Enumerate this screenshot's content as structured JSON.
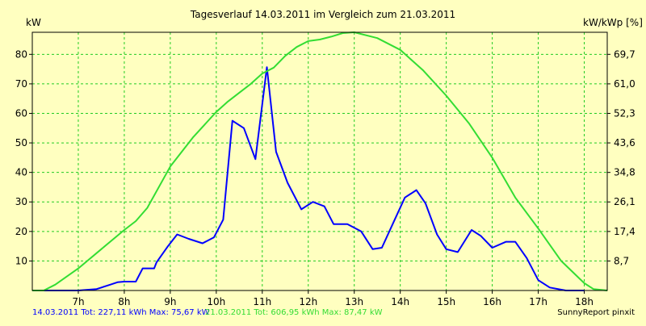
{
  "chart_data": {
    "type": "line",
    "title": "Tagesverlauf 14.03.2011 im Vergleich zum 21.03.2011",
    "ylabel_left": "kW",
    "ylabel_right": "kW/kWp [%]",
    "x_ticks": [
      "7h",
      "8h",
      "9h",
      "10h",
      "11h",
      "12h",
      "13h",
      "14h",
      "15h",
      "16h",
      "17h",
      "18h"
    ],
    "x_range": [
      6.0,
      18.5
    ],
    "y_ticks_left": [
      "10",
      "20",
      "30",
      "40",
      "50",
      "60",
      "70",
      "80"
    ],
    "y_ticks_right": [
      "8,7",
      "17,4",
      "26,1",
      "34,8",
      "43,6",
      "52,3",
      "61,0",
      "69,7"
    ],
    "ylim": [
      0,
      87.47
    ],
    "grid": true,
    "series": [
      {
        "name": "14.03.2011",
        "color": "#0000ff",
        "x": [
          6.0,
          6.4,
          7.0,
          7.4,
          7.7,
          7.85,
          8.0,
          8.25,
          8.4,
          8.65,
          8.7,
          8.95,
          9.15,
          9.4,
          9.7,
          9.95,
          10.15,
          10.35,
          10.6,
          10.85,
          11.1,
          11.3,
          11.55,
          11.85,
          12.1,
          12.35,
          12.55,
          12.85,
          13.15,
          13.4,
          13.6,
          13.85,
          14.1,
          14.35,
          14.55,
          14.8,
          15.0,
          15.25,
          15.55,
          15.75,
          16.0,
          16.3,
          16.5,
          16.75,
          17.0,
          17.25,
          17.6,
          17.9,
          18.0
        ],
        "y": [
          0,
          0,
          0,
          0.5,
          2.0,
          2.8,
          3.0,
          3.0,
          7.5,
          7.5,
          9.5,
          15.0,
          19.0,
          17.5,
          16.0,
          18.0,
          24.0,
          57.5,
          55.0,
          44.5,
          75.67,
          47.0,
          36.5,
          27.5,
          30.0,
          28.5,
          22.5,
          22.5,
          20.0,
          14.0,
          14.5,
          23.0,
          31.5,
          34.0,
          29.5,
          19.0,
          14.0,
          13.0,
          20.5,
          18.5,
          14.5,
          16.5,
          16.5,
          11.0,
          3.5,
          1.0,
          0,
          0,
          0
        ]
      },
      {
        "name": "21.03.2011",
        "color": "#33dd33",
        "x": [
          6.0,
          6.25,
          6.5,
          7.0,
          7.5,
          8.0,
          8.25,
          8.5,
          9.0,
          9.5,
          10.0,
          10.25,
          10.5,
          10.75,
          11.0,
          11.25,
          11.5,
          11.75,
          12.0,
          12.25,
          12.5,
          12.75,
          13.0,
          13.5,
          14.0,
          14.5,
          15.0,
          15.5,
          16.0,
          16.5,
          17.0,
          17.5,
          18.0,
          18.2,
          18.5
        ],
        "y": [
          0,
          0,
          2.0,
          7.5,
          14.0,
          20.5,
          23.5,
          28.0,
          42.0,
          52.0,
          60.5,
          64.0,
          67.0,
          70.0,
          73.5,
          75.5,
          79.5,
          82.5,
          84.5,
          85.0,
          86.0,
          87.2,
          87.47,
          85.5,
          81.5,
          74.5,
          66.0,
          56.5,
          45.0,
          31.5,
          21.0,
          10.0,
          2.5,
          0.5,
          0
        ]
      }
    ]
  },
  "legend": [
    {
      "label": "14.03.2011 Tot: 227,11 kWh Max: 75,67 kW",
      "color": "#0000ff"
    },
    {
      "label": "21.03.2011 Tot: 606,95 kWh Max: 87,47 kW",
      "color": "#33dd33"
    }
  ],
  "credit": "SunnyReport pinxit",
  "colors": {
    "background": "#ffffc0",
    "grid": "#22cc22",
    "axis": "#000000"
  }
}
